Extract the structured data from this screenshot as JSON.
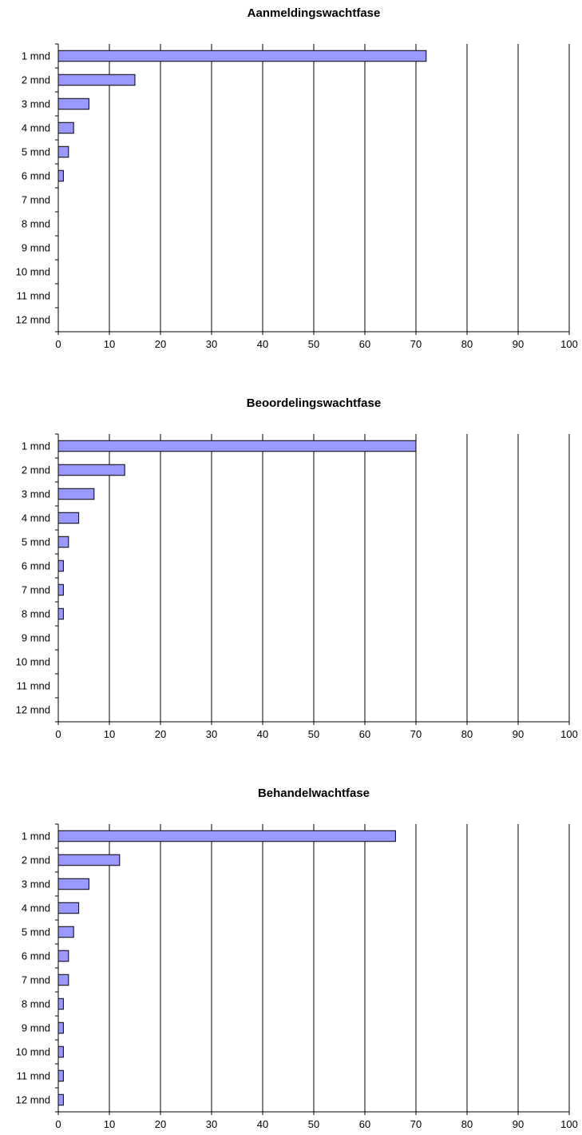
{
  "chart_data": [
    {
      "type": "bar",
      "orientation": "horizontal",
      "title": "Aanmeldingswachtfase",
      "categories": [
        "1 mnd",
        "2 mnd",
        "3 mnd",
        "4 mnd",
        "5 mnd",
        "6 mnd",
        "7 mnd",
        "8 mnd",
        "9 mnd",
        "10 mnd",
        "11 mnd",
        "12 mnd"
      ],
      "values": [
        72,
        15,
        6,
        3,
        2,
        1,
        0,
        0,
        0,
        0,
        0,
        0
      ],
      "xlim": [
        0,
        100
      ],
      "xticks": [
        "0",
        "10",
        "20",
        "30",
        "40",
        "50",
        "60",
        "70",
        "80",
        "90",
        "100"
      ],
      "grid": "vertical",
      "legend": "none",
      "bar_color": "#9999FF"
    },
    {
      "type": "bar",
      "orientation": "horizontal",
      "title": "Beoordelingswachtfase",
      "categories": [
        "1 mnd",
        "2 mnd",
        "3 mnd",
        "4 mnd",
        "5 mnd",
        "6 mnd",
        "7 mnd",
        "8 mnd",
        "9 mnd",
        "10 mnd",
        "11 mnd",
        "12 mnd"
      ],
      "values": [
        70,
        13,
        7,
        4,
        2,
        1,
        1,
        1,
        0,
        0,
        0,
        0
      ],
      "xlim": [
        0,
        100
      ],
      "xticks": [
        "0",
        "10",
        "20",
        "30",
        "40",
        "50",
        "60",
        "70",
        "80",
        "90",
        "100"
      ],
      "grid": "vertical",
      "legend": "none",
      "bar_color": "#9999FF"
    },
    {
      "type": "bar",
      "orientation": "horizontal",
      "title": "Behandelwachtfase",
      "categories": [
        "1 mnd",
        "2 mnd",
        "3 mnd",
        "4 mnd",
        "5 mnd",
        "6 mnd",
        "7 mnd",
        "8 mnd",
        "9 mnd",
        "10 mnd",
        "11 mnd",
        "12 mnd"
      ],
      "values": [
        66,
        12,
        6,
        4,
        3,
        2,
        2,
        1,
        1,
        1,
        1,
        1
      ],
      "xlim": [
        0,
        100
      ],
      "xticks": [
        "0",
        "10",
        "20",
        "30",
        "40",
        "50",
        "60",
        "70",
        "80",
        "90",
        "100"
      ],
      "grid": "vertical",
      "legend": "none",
      "bar_color": "#9999FF"
    }
  ]
}
